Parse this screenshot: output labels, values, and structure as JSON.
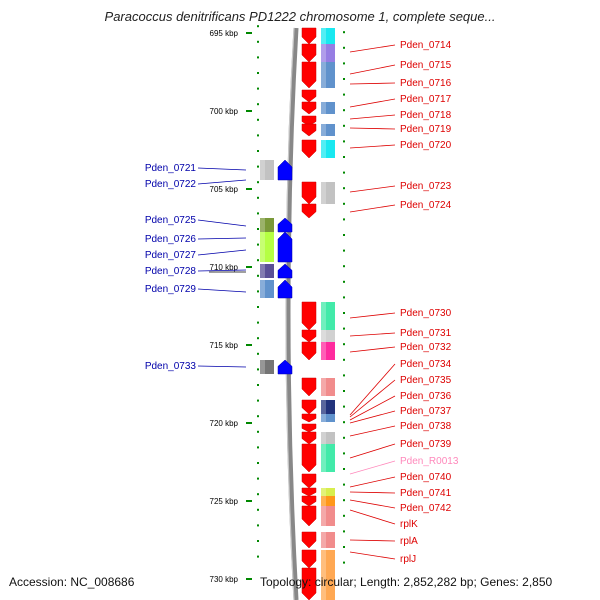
{
  "title": "Paracoccus denitrificans PD1222 chromosome 1, complete seque...",
  "footer": {
    "accession": "Accession: NC_008686",
    "summary": "Topology: circular; Length: 2,852,282 bp; Genes: 2,850"
  },
  "colors": {
    "forward_label": "#dd0000",
    "reverse_label": "#0000aa",
    "rna_label": "#ff88bb",
    "forward_arrow": "#ff0000",
    "reverse_arrow": "#0000ff",
    "backbone": "#777777",
    "scale_tick": "#008800"
  },
  "scale": {
    "ticks": [
      "695 kbp",
      "700 kbp",
      "705 kbp",
      "710 kbp",
      "715 kbp",
      "720 kbp",
      "725 kbp",
      "730 kbp"
    ]
  },
  "forward_labels": [
    "Pden_0714",
    "Pden_0715",
    "Pden_0716",
    "Pden_0717",
    "Pden_0718",
    "Pden_0719",
    "Pden_0720",
    "Pden_0723",
    "Pden_0724",
    "Pden_0730",
    "Pden_0731",
    "Pden_0732",
    "Pden_0734",
    "Pden_0735",
    "Pden_0736",
    "Pden_0737",
    "Pden_0738",
    "Pden_0739",
    "Pden_R0013",
    "Pden_0740",
    "Pden_0741",
    "Pden_0742",
    "rplK",
    "rplA",
    "rplJ"
  ],
  "reverse_labels": [
    "Pden_0721",
    "Pden_0722",
    "Pden_0725",
    "Pden_0726",
    "Pden_0727",
    "Pden_0728",
    "Pden_0729",
    "Pden_0733"
  ]
}
